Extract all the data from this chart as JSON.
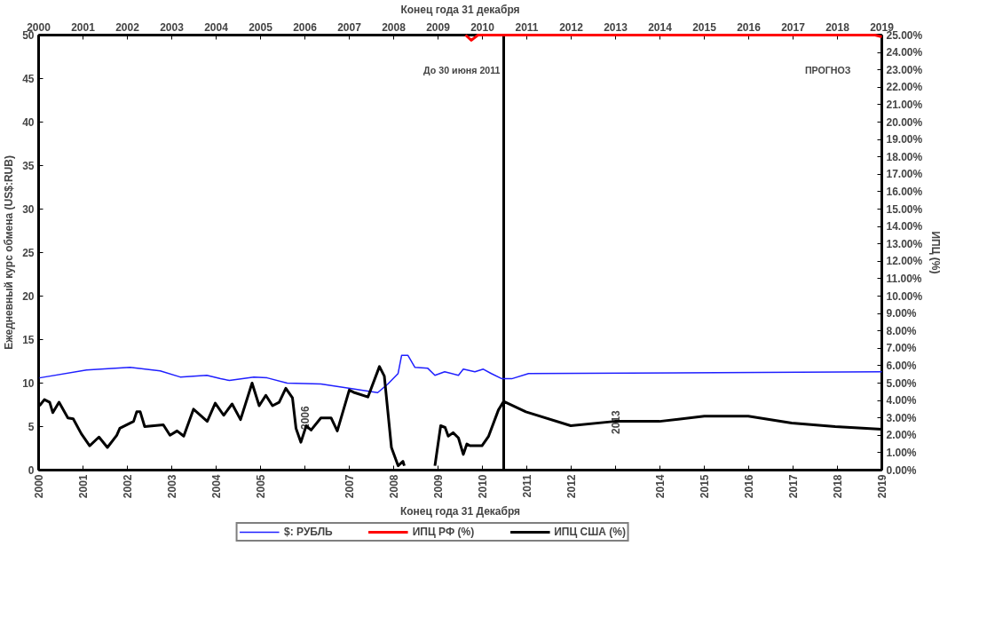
{
  "chart_data": {
    "type": "line",
    "x2label": "Конец года 31 декабря",
    "xlabel": "Конец года 31 Декабря",
    "ylabel": "Ежедневный курс обмена (US$:RUB)",
    "y2label": "ИПЦ (%)",
    "xlim": [
      2000,
      2019
    ],
    "x2lim": [
      2000,
      2019
    ],
    "xticks": [
      2000,
      2001,
      2002,
      2003,
      2004,
      2005,
      {
        "value": 2006,
        "label": null
      },
      2007,
      2008,
      2009,
      2010,
      2011,
      2012,
      {
        "value": 2013,
        "label": null
      },
      2014,
      2015,
      2016,
      2017,
      2018,
      2019
    ],
    "x2ticks": [
      2000,
      2001,
      2002,
      2003,
      2004,
      2005,
      2006,
      2007,
      2008,
      2009,
      2010,
      2011,
      2012,
      2013,
      2014,
      2015,
      2016,
      2017,
      2018,
      2019
    ],
    "ylim": [
      0,
      50
    ],
    "yticks": [
      0,
      5,
      10,
      15,
      20,
      25,
      30,
      35,
      40,
      45,
      50
    ],
    "y2lim": [
      0,
      25
    ],
    "y2ticks": [
      {
        "value": 0,
        "label": "0.00%"
      },
      {
        "value": 1,
        "label": "1.00%"
      },
      {
        "value": 2,
        "label": "2.00%"
      },
      {
        "value": 3,
        "label": "3.00%"
      },
      {
        "value": 4,
        "label": "4.00%"
      },
      {
        "value": 5,
        "label": "5.00%"
      },
      {
        "value": 6,
        "label": "6.00%"
      },
      {
        "value": 7,
        "label": "7.00%"
      },
      {
        "value": 8,
        "label": "8.00%"
      },
      {
        "value": 9,
        "label": "9.00%"
      },
      {
        "value": 10,
        "label": "10.00%"
      },
      {
        "value": 11,
        "label": "11.00%"
      },
      {
        "value": 12,
        "label": "12.00%"
      },
      {
        "value": 13,
        "label": "13.00%"
      },
      {
        "value": 14,
        "label": "14.00%"
      },
      {
        "value": 15,
        "label": "15.00%"
      },
      {
        "value": 16,
        "label": "16.00%"
      },
      {
        "value": 17,
        "label": "17.00%"
      },
      {
        "value": 18,
        "label": "18.00%"
      },
      {
        "value": 19,
        "label": "19.00%"
      },
      {
        "value": 20,
        "label": "20.00%"
      },
      {
        "value": 21,
        "label": "21.00%"
      },
      {
        "value": 22,
        "label": "22.00%"
      },
      {
        "value": 23,
        "label": "23.00%"
      },
      {
        "value": 24,
        "label": "24.00%"
      },
      {
        "value": 25,
        "label": "25.00%"
      }
    ],
    "series": [
      {
        "name": "$: РУБЛЬ",
        "color": "#1f1fff",
        "x": [
          2000.02,
          2001.08,
          2002.06,
          2002.74,
          2003.19,
          2003.79,
          2004.1,
          2004.3,
          2004.85,
          2005.15,
          2005.6,
          2006.36,
          2007.12,
          2007.64,
          2007.87,
          2008.1,
          2008.18,
          2008.32,
          2008.48,
          2008.77,
          2008.93,
          2009.15,
          2009.46,
          2009.57,
          2009.83,
          2010.02,
          2010.2,
          2010.44,
          2010.66,
          2011.04,
          2019
        ],
        "values": [
          10.6,
          11.5,
          11.8,
          11.4,
          10.7,
          10.9,
          10.5,
          10.3,
          10.7,
          10.6,
          10.0,
          9.9,
          9.3,
          8.9,
          9.9,
          11.1,
          13.2,
          13.2,
          11.8,
          11.7,
          10.9,
          11.3,
          10.9,
          11.6,
          11.3,
          11.6,
          11.1,
          10.5,
          10.5,
          11.1,
          11.3
        ]
      },
      {
        "name": "ИПЦ РФ (%)",
        "color": "#ff0000",
        "axis": "y2",
        "x": [
          2009.62,
          2009.75,
          2009.9,
          2018.85,
          2019
        ],
        "values": [
          25,
          24.7,
          25,
          25,
          24.9
        ]
      },
      {
        "name": "ИПЦ США (%)",
        "color": "#000000",
        "axis": "y2",
        "x": [
          2000.02,
          2000.13,
          2000.25,
          2000.32,
          2000.46,
          2000.66,
          2000.78,
          2000.96,
          2001.15,
          2001.36,
          2001.55,
          2001.76,
          2001.83,
          2002.14,
          2002.21,
          2002.29,
          2002.39,
          2002.81,
          2002.96,
          2003.12,
          2003.27,
          2003.49,
          2003.8,
          2003.98,
          2004.17,
          2004.36,
          2004.55,
          2004.81,
          2004.97,
          2005.12,
          2005.27,
          2005.42,
          2005.57,
          2005.72,
          2005.8,
          2005.91,
          2006.03,
          2006.14,
          2006.36,
          2006.59,
          2006.73,
          2007.0,
          2007.12,
          2007.42,
          2007.68,
          2007.79,
          2007.95,
          2008.1,
          2008.21,
          2008.24,
          2008.5,
          2008.93,
          2009.06,
          2009.16,
          2009.23,
          2009.34,
          2009.46,
          2009.57,
          2009.65,
          2009.72,
          2009.99,
          2010.14,
          2010.36,
          2010.48,
          2010.98,
          2011.99,
          2012.98,
          2013.99,
          2015.0,
          2015.99,
          2016.97,
          2017.95,
          2019.0
        ],
        "values": [
          3.7,
          4.05,
          3.9,
          3.3,
          3.9,
          3.0,
          2.95,
          2.1,
          1.4,
          1.9,
          1.3,
          2.0,
          2.4,
          2.8,
          3.35,
          3.35,
          2.5,
          2.6,
          2.0,
          2.25,
          1.95,
          3.5,
          2.8,
          3.85,
          3.15,
          3.8,
          2.9,
          5.0,
          3.7,
          4.3,
          3.7,
          3.9,
          4.7,
          4.15,
          2.4,
          1.6,
          2.55,
          2.3,
          3.0,
          3.0,
          2.25,
          4.6,
          4.45,
          4.2,
          5.95,
          5.4,
          1.3,
          0.25,
          0.5,
          0.25,
          null,
          0.25,
          2.55,
          2.45,
          1.95,
          2.15,
          1.85,
          0.9,
          1.5,
          1.4,
          1.4,
          1.95,
          3.45,
          3.95,
          3.35,
          2.55,
          2.8,
          2.8,
          3.1,
          3.1,
          2.7,
          2.5,
          2.35
        ]
      }
    ],
    "ref_lines": [
      {
        "axis": "x",
        "value": 2010.48,
        "label": "До 30 июня 2011"
      }
    ],
    "annotations": [
      "ПРОГНОЗ",
      "2006",
      "2013"
    ],
    "legend": "bottom",
    "grid": false,
    "line_style": "solid"
  }
}
